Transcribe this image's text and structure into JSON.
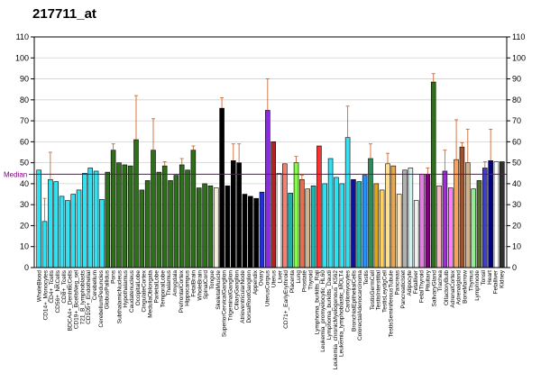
{
  "chart_data": {
    "type": "bar",
    "title": "217711_at",
    "xlabel": "",
    "ylabel": "",
    "ylim": [
      0,
      110
    ],
    "yticks": [
      0,
      10,
      20,
      30,
      40,
      50,
      60,
      70,
      80,
      90,
      100,
      110
    ],
    "grid": true,
    "legend": "none",
    "median": {
      "label": "Median",
      "value": 44.5,
      "color": "#800080"
    },
    "categories": [
      "WholeBlood",
      "CD14+_Monocytes",
      "CD4+_Tcells",
      "CD56+_NKCells",
      "CD8+_Tcells",
      "CD19+_Bcells",
      "BDCA4+_DentriticCells",
      "CD33+_Myeloid",
      "CD19+_BcellsNeg_sel",
      "CD34+",
      "721_B_lymphoblasts",
      "CD105+_Endothelial",
      "Cerebellum",
      "CerebellumPeduncles",
      "Cerebellum2",
      "GlobusPallidus",
      "Pons",
      "SubthalamicNucleus",
      "Hypothalamus",
      "Caudatenucleus",
      "OccipitalLobe",
      "CingulateCortex",
      "MedullaOblongata",
      "ParietalLobe",
      "TemporalLobe",
      "Thalamus",
      "Amygdala",
      "PrefrontalCortex",
      "Hippocampus",
      "FetalBrain",
      "WholeBrain",
      "SpinalCord",
      "Tongue",
      "SkeletalMuscle",
      "SuperiorCervicalGanglion",
      "TrigeminalGanglion",
      "CiliaryGanglion",
      "Spinalcord2",
      "AtrioventricularNode",
      "DorsalRootGanglion",
      "Appendix",
      "Ovary",
      "UterusCorpus",
      "Uterus",
      "Liver",
      "CD71+_EarlyErythroid",
      "Placenta",
      "Lung",
      "Prostate",
      "Thyroid",
      "Lymphoma_burkitts_Raji",
      "Leukemia_promyelocytic_HL60",
      "Lymphoma_burkitts_Daudi",
      "Leukemia_chronicMyelogenous_K562",
      "Leukemia_lymphoblastic_MOLT4",
      "ColorectalAdenocarcinoma",
      "Cardiomyocytes",
      "SmoothMuscle",
      "BronchialEpithelialCells",
      "Testis",
      "TestisGermCell",
      "TestisInterstitial",
      "TestisLeydigCell",
      "TestisSeminiferousTubule",
      "Pancreas",
      "PancreaticIslet",
      "Adipocyte",
      "Fetalliver",
      "FetalThyroid",
      "Pituitary",
      "SalivaryGland",
      "Trachea",
      "OlfactoryBulb",
      "AdrenalCortex",
      "Adrenalgland",
      "BoneMarrow",
      "Thymus",
      "Lymphnode",
      "Tonsil",
      "Heart",
      "Fetalliver2",
      "Kidney"
    ],
    "visible_tick_labels": [
      "WholeBlood",
      "CD14+_Monocytes",
      "CD4+_Tcells",
      "CD56+_NKCells",
      "CD8+_Tcells",
      "BDCA4+_DentriticCells",
      "CD19+_BcellsNeg_sel",
      "721_B_lymphoblasts",
      "CD105+_Endothelial",
      "Cerebellum",
      "CerebellumPeduncles",
      "GlobusPallidus",
      "Pons",
      "SubthalamicNucleus",
      "Hypothalamus",
      "Caudatenucleus",
      "OccipitalLobe",
      "CingulateCortex",
      "MedullaOblongata",
      "ParietalLobe",
      "TemporalLobe",
      "Thalamus",
      "Amygdala",
      "PrefrontalCortex",
      "Hippocampus",
      "FetalBrain",
      "WholeBrain",
      "SpinalCord",
      "Tongue",
      "SkeletalMuscle",
      "SuperiorCervicalGanglion",
      "TrigeminalGanglion",
      "CiliaryGanglion",
      "AtrioventricularNode",
      "DorsalRootGanglion",
      "Appendix",
      "Ovary",
      "UterusCorpus",
      "Uterus",
      "Liver",
      "CD71+_EarlyErythroid",
      "Placenta",
      "Lung",
      "Prostate",
      "Thyroid",
      "Lymphoma_burkitts_Raji",
      "Leukemia_promyelocytic_HL60",
      "Lymphoma_burkitts_Daudi",
      "Leukemia_chronicMyelogenous_K562",
      "Leukemia_lymphoblastic_MOLT4",
      "Cardiomyocytes",
      "BronchialEpithelialCells",
      "ColorectalAdenocarcinoma",
      "Testis",
      "TestisGermCell",
      "TestisInterstitial",
      "TestisLeydigCell",
      "TestisSeminiferousTubule",
      "Pancreas",
      "PancreaticIslet",
      "Adipocyte",
      "Fetalliver",
      "FetalThyroid",
      "Pituitary",
      "SalivaryGland",
      "Trachea",
      "OlfactoryBulb",
      "AdrenalCortex",
      "Adrenalgland",
      "BoneMarrow",
      "Thymus",
      "Lymphnode",
      "Tonsil",
      "Heart",
      "Fetalliver",
      "Kidney"
    ],
    "values": [
      46.5,
      22,
      42,
      41,
      34,
      32,
      35,
      37,
      45,
      47.5,
      46,
      32.5,
      45.5,
      56,
      50,
      49,
      48.5,
      61,
      37,
      41.5,
      56,
      45.5,
      48.5,
      41.5,
      44,
      49,
      46.5,
      56,
      38,
      40,
      39,
      38,
      76,
      39,
      51,
      50,
      35,
      34,
      33,
      36,
      75,
      60,
      45,
      49.5,
      35.5,
      50,
      42,
      37.5,
      39,
      58,
      40,
      52,
      43,
      40,
      62,
      42,
      41,
      44,
      52,
      40,
      37,
      49.5,
      48.5,
      35,
      46.5,
      47.5,
      32,
      44.5,
      44.5,
      88.5,
      39,
      46,
      38,
      51.5,
      57.5,
      50,
      37.5,
      41.5,
      47.5,
      51,
      50.5,
      50.5
    ],
    "errors": [
      0,
      11,
      13,
      0,
      0,
      0,
      0,
      0,
      0,
      0,
      0,
      0,
      0,
      3,
      0,
      0,
      0,
      21,
      0,
      0,
      15,
      0,
      2,
      0,
      0,
      3,
      0,
      2,
      0,
      0,
      0,
      0,
      5,
      0,
      8,
      9,
      0,
      0,
      0,
      0,
      15,
      0,
      0,
      0,
      0,
      3,
      2,
      0,
      0,
      0,
      0,
      0,
      0,
      0,
      15,
      0,
      0,
      0,
      7,
      0,
      0,
      5,
      0,
      0,
      0,
      0,
      0,
      0,
      3,
      4,
      0,
      10,
      0,
      19,
      2,
      16,
      0,
      0,
      3,
      15,
      0,
      0
    ],
    "colors": [
      "#33e0f0",
      "#33e0f0",
      "#33e0f0",
      "#33e0f0",
      "#33e0f0",
      "#33e0f0",
      "#33e0f0",
      "#33e0f0",
      "#33e0f0",
      "#33e0f0",
      "#33e0f0",
      "#33e0f0",
      "#2e6f1a",
      "#2e6f1a",
      "#2e6f1a",
      "#2e6f1a",
      "#2e6f1a",
      "#2e6f1a",
      "#2e6f1a",
      "#2e6f1a",
      "#2e6f1a",
      "#2e6f1a",
      "#2e6f1a",
      "#2e6f1a",
      "#2e6f1a",
      "#2e6f1a",
      "#2e6f1a",
      "#2e6f1a",
      "#2e6f1a",
      "#2e6f1a",
      "#2e6f1a",
      "#f5f0dc",
      "#000000",
      "#000000",
      "#000000",
      "#000000",
      "#000000",
      "#000000",
      "#000000",
      "#2030e0",
      "#8a2be2",
      "#b22222",
      "#ffffff",
      "#f08070",
      "#20b2aa",
      "#80ff40",
      "#e07050",
      "#d2b48c",
      "#20b2aa",
      "#ff3030",
      "#33e0f0",
      "#33e0f0",
      "#33e0f0",
      "#33e0f0",
      "#33e0f0",
      "#1010a0",
      "#20b2aa",
      "#1e90ff",
      "#2e8b57",
      "#daa520",
      "#ffd060",
      "#ffe090",
      "#e8a850",
      "#ffe4b5",
      "#b0b0b0",
      "#d0f0f0",
      "#f0f0f0",
      "#e080e0",
      "#800080",
      "#2e6f1a",
      "#ffb6c1",
      "#9932cc",
      "#ff80ff",
      "#f4a460",
      "#a0522d",
      "#d2b48c",
      "#90ee90",
      "#556b2f",
      "#4040c0",
      "#000080",
      "#ffffff",
      "#303030"
    ],
    "error_color": "#cc6a33"
  }
}
